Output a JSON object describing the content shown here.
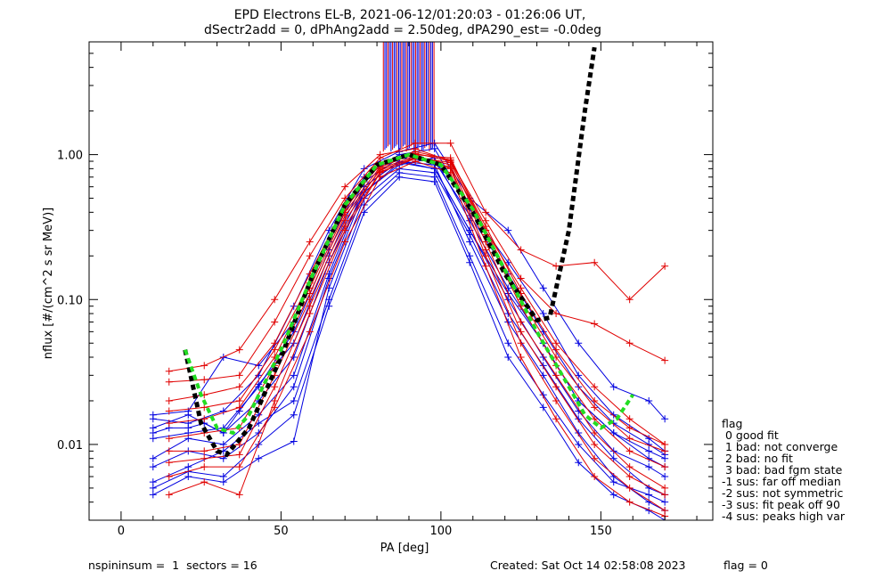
{
  "chart_data": {
    "type": "line",
    "title": "EPD Electrons EL-B, 2021-06-12/01:20:03 - 01:26:06 UT,",
    "subtitle": "dSectr2add = 0, dPhAng2add = 2.50deg, dPA290_est=  -0.0deg",
    "xlabel": "PA [deg]",
    "ylabel": "nflux [#/(cm^2 s sr MeV)]",
    "xlim": [
      -10,
      185
    ],
    "ylim": [
      0.003,
      6.0
    ],
    "yscale": "log",
    "xticks": [
      0,
      50,
      100,
      150
    ],
    "xtick_labels": [
      "0",
      "50",
      "100",
      "150"
    ],
    "yticks": [
      0.01,
      0.1,
      1.0
    ],
    "ytick_labels": [
      "0.01",
      "0.10",
      "1.00"
    ],
    "grid": false,
    "colors": {
      "red": "#e00000",
      "blue": "#0000e0",
      "black": "#000000",
      "green": "#22dd22"
    },
    "series": [
      {
        "color": "blue",
        "x": [
          10,
          15,
          21,
          26,
          32,
          37,
          43,
          54,
          65,
          76,
          87,
          98,
          109,
          121,
          132,
          143,
          154,
          165,
          170
        ],
        "y": [
          0.012,
          0.013,
          0.013,
          0.014,
          0.012,
          0.017,
          0.026,
          0.05,
          0.2,
          0.6,
          0.9,
          0.8,
          0.3,
          0.11,
          0.05,
          0.02,
          0.012,
          0.009,
          0.008
        ]
      },
      {
        "color": "blue",
        "x": [
          10,
          21,
          32,
          43,
          54,
          65,
          76,
          87,
          98,
          109,
          121,
          132,
          143,
          154,
          165,
          170
        ],
        "y": [
          0.013,
          0.016,
          0.012,
          0.02,
          0.04,
          0.18,
          0.55,
          0.85,
          0.95,
          0.35,
          0.12,
          0.05,
          0.02,
          0.012,
          0.008,
          0.007
        ]
      },
      {
        "color": "blue",
        "x": [
          10,
          21,
          32,
          43,
          54,
          65,
          76,
          87,
          98,
          109,
          121,
          132,
          143,
          154,
          165,
          170
        ],
        "y": [
          0.0045,
          0.006,
          0.0055,
          0.008,
          0.0105,
          0.12,
          0.5,
          0.8,
          0.75,
          0.28,
          0.08,
          0.035,
          0.015,
          0.008,
          0.005,
          0.0045
        ]
      },
      {
        "color": "blue",
        "x": [
          10,
          21,
          32,
          43,
          54,
          65,
          76,
          87,
          98,
          109,
          121,
          132,
          143,
          154,
          165,
          170
        ],
        "y": [
          0.016,
          0.017,
          0.04,
          0.035,
          0.07,
          0.25,
          0.7,
          1.0,
          1.1,
          0.42,
          0.18,
          0.08,
          0.03,
          0.016,
          0.011,
          0.009
        ]
      },
      {
        "color": "blue",
        "x": [
          10,
          21,
          32,
          43,
          54,
          65,
          76,
          87,
          98,
          109,
          121,
          132,
          143,
          154,
          165,
          170
        ],
        "y": [
          0.008,
          0.011,
          0.01,
          0.016,
          0.03,
          0.15,
          0.6,
          0.9,
          0.85,
          0.25,
          0.07,
          0.03,
          0.012,
          0.006,
          0.004,
          0.0035
        ]
      },
      {
        "color": "blue",
        "x": [
          10,
          21,
          32,
          43,
          54,
          65,
          76,
          87,
          98,
          109,
          121,
          132,
          143,
          154,
          165,
          170
        ],
        "y": [
          0.011,
          0.012,
          0.013,
          0.025,
          0.06,
          0.22,
          0.65,
          0.95,
          0.9,
          0.38,
          0.15,
          0.06,
          0.025,
          0.014,
          0.01,
          0.0085
        ]
      },
      {
        "color": "blue",
        "x": [
          10,
          21,
          32,
          43,
          54,
          65,
          76,
          87,
          98,
          109,
          121,
          132,
          143,
          154,
          165,
          170
        ],
        "y": [
          0.0055,
          0.007,
          0.009,
          0.014,
          0.02,
          0.1,
          0.45,
          0.75,
          0.7,
          0.2,
          0.05,
          0.022,
          0.01,
          0.0055,
          0.0045,
          0.004
        ]
      },
      {
        "color": "blue",
        "x": [
          10,
          21,
          32,
          43,
          54,
          65,
          76,
          87,
          98,
          109,
          121,
          132,
          143,
          154,
          165,
          170
        ],
        "y": [
          0.007,
          0.009,
          0.008,
          0.012,
          0.025,
          0.14,
          0.55,
          0.88,
          0.8,
          0.3,
          0.1,
          0.04,
          0.017,
          0.009,
          0.007,
          0.006
        ]
      },
      {
        "color": "blue",
        "x": [
          10,
          21,
          32,
          43,
          54,
          65,
          76,
          87,
          98,
          109,
          121,
          132,
          143,
          154,
          165,
          170
        ],
        "y": [
          0.015,
          0.014,
          0.017,
          0.03,
          0.09,
          0.3,
          0.8,
          1.05,
          1.2,
          0.5,
          0.3,
          0.12,
          0.05,
          0.025,
          0.02,
          0.015
        ]
      },
      {
        "color": "blue",
        "x": [
          10,
          21,
          32,
          43,
          54,
          65,
          76,
          87,
          98,
          109,
          121,
          132,
          143,
          154,
          165,
          170
        ],
        "y": [
          0.005,
          0.0065,
          0.006,
          0.01,
          0.016,
          0.09,
          0.4,
          0.7,
          0.65,
          0.18,
          0.04,
          0.018,
          0.0075,
          0.0045,
          0.0035,
          0.003
        ]
      },
      {
        "color": "red",
        "x": [
          15,
          26,
          37,
          48,
          59,
          70,
          81,
          92,
          103,
          114,
          125,
          136,
          148,
          159,
          170
        ],
        "y": [
          0.032,
          0.035,
          0.045,
          0.1,
          0.25,
          0.6,
          1.0,
          1.1,
          0.9,
          0.35,
          0.14,
          0.08,
          0.068,
          0.05,
          0.038
        ]
      },
      {
        "color": "red",
        "x": [
          15,
          26,
          37,
          48,
          59,
          70,
          81,
          92,
          103,
          114,
          125,
          136,
          148,
          159,
          170
        ],
        "y": [
          0.027,
          0.028,
          0.03,
          0.07,
          0.2,
          0.5,
          0.95,
          1.2,
          1.2,
          0.4,
          0.22,
          0.17,
          0.18,
          0.1,
          0.17
        ]
      },
      {
        "color": "red",
        "x": [
          15,
          26,
          37,
          48,
          59,
          70,
          81,
          92,
          103,
          114,
          125,
          136,
          148,
          159,
          170
        ],
        "y": [
          0.0045,
          0.0055,
          0.0045,
          0.02,
          0.08,
          0.3,
          0.75,
          0.95,
          0.8,
          0.2,
          0.05,
          0.02,
          0.008,
          0.005,
          0.0035
        ]
      },
      {
        "color": "red",
        "x": [
          15,
          26,
          37,
          48,
          59,
          70,
          81,
          92,
          103,
          114,
          125,
          136,
          148,
          159,
          170
        ],
        "y": [
          0.02,
          0.022,
          0.025,
          0.05,
          0.15,
          0.45,
          0.85,
          1.0,
          0.95,
          0.3,
          0.1,
          0.04,
          0.018,
          0.011,
          0.009
        ]
      },
      {
        "color": "red",
        "x": [
          15,
          26,
          37,
          48,
          59,
          70,
          81,
          92,
          103,
          114,
          125,
          136,
          148,
          159,
          170
        ],
        "y": [
          0.009,
          0.009,
          0.01,
          0.03,
          0.1,
          0.35,
          0.8,
          0.98,
          0.85,
          0.25,
          0.07,
          0.03,
          0.012,
          0.007,
          0.005
        ]
      },
      {
        "color": "red",
        "x": [
          15,
          26,
          37,
          48,
          59,
          70,
          81,
          92,
          103,
          114,
          125,
          136,
          148,
          159,
          170
        ],
        "y": [
          0.014,
          0.015,
          0.018,
          0.04,
          0.12,
          0.4,
          0.82,
          1.02,
          0.9,
          0.28,
          0.09,
          0.035,
          0.015,
          0.009,
          0.007
        ]
      },
      {
        "color": "red",
        "x": [
          15,
          26,
          37,
          48,
          59,
          70,
          81,
          92,
          103,
          114,
          125,
          136,
          148,
          159,
          170
        ],
        "y": [
          0.006,
          0.007,
          0.007,
          0.018,
          0.06,
          0.25,
          0.7,
          0.9,
          0.75,
          0.17,
          0.04,
          0.015,
          0.006,
          0.004,
          0.0032
        ]
      },
      {
        "color": "red",
        "x": [
          15,
          26,
          37,
          48,
          59,
          70,
          81,
          92,
          103,
          114,
          125,
          136,
          148,
          159,
          170
        ],
        "y": [
          0.011,
          0.012,
          0.013,
          0.035,
          0.11,
          0.38,
          0.78,
          0.96,
          0.88,
          0.3,
          0.12,
          0.05,
          0.025,
          0.015,
          0.01
        ]
      },
      {
        "color": "red",
        "x": [
          15,
          26,
          37,
          48,
          59,
          70,
          81,
          92,
          103,
          114,
          125,
          136,
          148,
          159,
          170
        ],
        "y": [
          0.017,
          0.018,
          0.02,
          0.045,
          0.13,
          0.42,
          0.88,
          1.05,
          0.92,
          0.32,
          0.11,
          0.045,
          0.02,
          0.013,
          0.01
        ]
      },
      {
        "color": "red",
        "x": [
          15,
          26,
          37,
          48,
          59,
          70,
          81,
          92,
          103,
          114,
          125,
          136,
          148,
          159,
          170
        ],
        "y": [
          0.0075,
          0.008,
          0.0085,
          0.025,
          0.09,
          0.32,
          0.76,
          0.94,
          0.82,
          0.22,
          0.06,
          0.025,
          0.01,
          0.006,
          0.0045
        ]
      }
    ],
    "fit_black": {
      "x": [
        20,
        25,
        30,
        33,
        40,
        50,
        60,
        70,
        80,
        90,
        100,
        110,
        120,
        130,
        134,
        140,
        145,
        148
      ],
      "y": [
        0.045,
        0.014,
        0.009,
        0.0085,
        0.013,
        0.04,
        0.15,
        0.45,
        0.85,
        1.0,
        0.85,
        0.4,
        0.15,
        0.072,
        0.075,
        0.3,
        2.0,
        5.5
      ]
    },
    "fit_green": {
      "x": [
        20,
        25,
        30,
        35,
        40,
        50,
        60,
        70,
        80,
        90,
        100,
        110,
        120,
        130,
        140,
        145,
        150,
        155,
        160
      ],
      "y": [
        0.045,
        0.022,
        0.013,
        0.012,
        0.016,
        0.045,
        0.15,
        0.45,
        0.85,
        1.0,
        0.85,
        0.42,
        0.16,
        0.06,
        0.025,
        0.016,
        0.013,
        0.015,
        0.022
      ]
    }
  },
  "legend": {
    "title": "flag",
    "items": [
      " 0 good fit",
      " 1 bad: not converge",
      " 2 bad: no fit",
      " 3 bad: bad fgm state",
      "-1 sus: far off median",
      "-2 sus: not symmetric",
      "-3 sus: fit peak off 90",
      "-4 sus: peaks high var"
    ]
  },
  "footer": {
    "left": "nspininsum =  1  sectors = 16",
    "created": "Created: Sat Oct 14 02:58:08 2023",
    "flag": "flag = 0"
  }
}
